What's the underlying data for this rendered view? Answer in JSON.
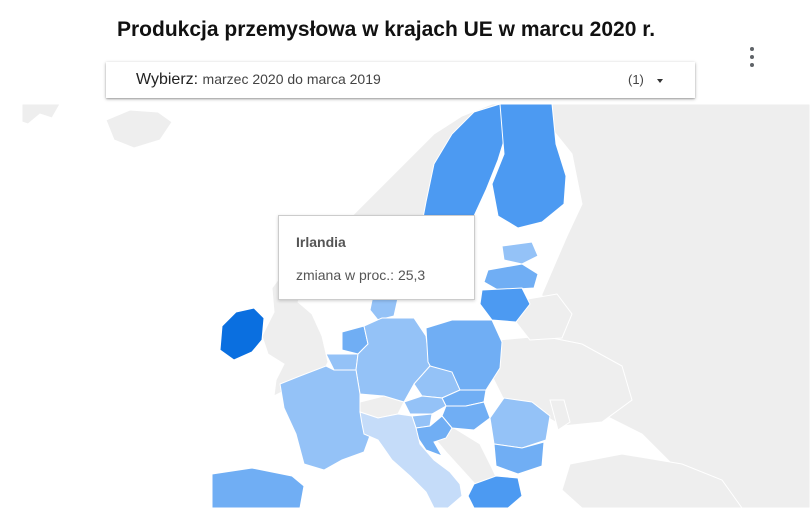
{
  "title": "Produkcja przemysłowa w krajach UE w marcu 2020 r.",
  "menu": {
    "icon": "more-vert-icon"
  },
  "selector": {
    "label": "Wybierz",
    "separator": ":",
    "value": "marzec 2020 do marca 2019",
    "count": "(1)",
    "icon": "dropdown-caret-icon"
  },
  "tooltip": {
    "country": "Irlandia",
    "metric_label": "zmiana w proc.",
    "separator": ":",
    "value": "25,3"
  },
  "colors": {
    "water": "#ffffff",
    "non_eu": "#eeeeee",
    "border": "#ffffff",
    "highlight": "#0a6fe0",
    "dark": "#4c9af2",
    "medium": "#70aef4",
    "light": "#94c2f7",
    "lighter": "#c5dcf9"
  },
  "legend": []
}
